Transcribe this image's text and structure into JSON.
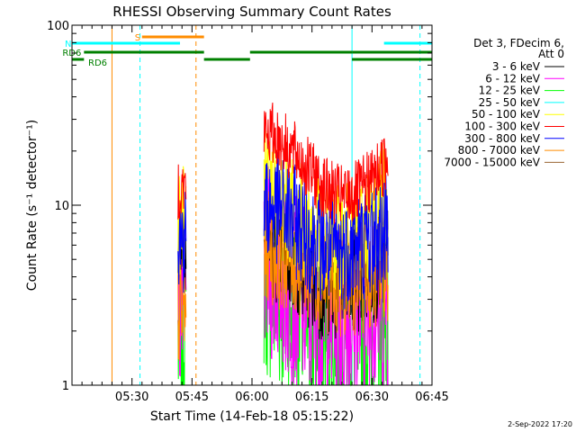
{
  "chart_data": {
    "type": "line",
    "title": "RHESSI Observing Summary Count Rates",
    "xlabel": "Start Time (14-Feb-18 05:15:22)",
    "ylabel": "Count Rate (s⁻¹ detector⁻¹)",
    "yscale": "log",
    "ylim": [
      1,
      100
    ],
    "xlim_minutes_after_0515": [
      0,
      90
    ],
    "x_ticks": [
      {
        "label": "05:30",
        "minute": 15
      },
      {
        "label": "05:45",
        "minute": 30
      },
      {
        "label": "06:00",
        "minute": 45
      },
      {
        "label": "06:15",
        "minute": 60
      },
      {
        "label": "06:30",
        "minute": 75
      },
      {
        "label": "06:45",
        "minute": 90
      }
    ],
    "y_ticks": [
      {
        "label": "1",
        "value": 1
      },
      {
        "label": "10",
        "value": 10
      },
      {
        "label": "100",
        "value": 100
      }
    ],
    "legend_position": "right",
    "legend_header": [
      "Det 3, FDecim 6,",
      "Att 0"
    ],
    "series": [
      {
        "name": "3 - 6 keV",
        "color": "#000000",
        "segments": [
          [
            [
              26.5,
              7.0
            ],
            [
              28.5,
              7.0
            ]
          ],
          [
            [
              48,
              6.0
            ],
            [
              51,
              6.0
            ],
            [
              56,
              5.0
            ],
            [
              60,
              4.0
            ],
            [
              64,
              3.5
            ],
            [
              68,
              3.5
            ],
            [
              72,
              4.0
            ],
            [
              75,
              4.5
            ],
            [
              79,
              5.0
            ]
          ]
        ]
      },
      {
        "name": "6 - 12 keV",
        "color": "#ff00ff",
        "segments": [
          [
            [
              26.5,
              3.0
            ],
            [
              28.5,
              3.0
            ]
          ],
          [
            [
              48,
              5.0
            ],
            [
              52,
              4.0
            ],
            [
              56,
              3.2
            ],
            [
              60,
              2.6
            ],
            [
              64,
              2.4
            ],
            [
              68,
              2.4
            ],
            [
              72,
              2.5
            ],
            [
              75,
              2.8
            ],
            [
              79,
              3.0
            ]
          ]
        ]
      },
      {
        "name": "12 - 25 keV",
        "color": "#00ff00",
        "segments": [
          [
            [
              26.5,
              1.8
            ],
            [
              28.5,
              1.8
            ]
          ],
          [
            [
              48,
              4.0
            ],
            [
              52,
              3.0
            ],
            [
              56,
              2.5
            ],
            [
              60,
              2.0
            ],
            [
              64,
              1.8
            ],
            [
              68,
              1.8
            ],
            [
              72,
              1.9
            ],
            [
              75,
              2.0
            ],
            [
              79,
              2.1
            ]
          ]
        ]
      },
      {
        "name": "25 - 50 keV",
        "color": "#00ffff",
        "segments": []
      },
      {
        "name": "50 - 100 keV",
        "color": "#ffff00",
        "segments": [
          [
            [
              26.5,
              8.5
            ],
            [
              28.5,
              8.5
            ]
          ],
          [
            [
              48,
              13
            ],
            [
              52,
              11
            ],
            [
              56,
              9
            ],
            [
              60,
              7.5
            ],
            [
              64,
              6.5
            ],
            [
              68,
              6.5
            ],
            [
              72,
              7.2
            ],
            [
              75,
              8.5
            ],
            [
              79,
              12
            ]
          ]
        ]
      },
      {
        "name": "100 - 300 keV",
        "color": "#ff0000",
        "segments": [
          [
            [
              26.5,
              12.5
            ],
            [
              28.5,
              12.5
            ]
          ],
          [
            [
              48,
              25
            ],
            [
              50,
              25
            ],
            [
              53,
              22
            ],
            [
              56,
              19
            ],
            [
              60,
              15
            ],
            [
              64,
              12
            ],
            [
              68,
              11
            ],
            [
              72,
              12
            ],
            [
              75,
              14
            ],
            [
              79,
              18
            ]
          ]
        ]
      },
      {
        "name": "300 - 800 keV",
        "color": "#0000ff",
        "segments": [
          [
            [
              26.5,
              6.5
            ],
            [
              28.5,
              6.5
            ]
          ],
          [
            [
              48,
              10
            ],
            [
              52,
              9.5
            ],
            [
              56,
              8
            ],
            [
              60,
              6.5
            ],
            [
              64,
              5.5
            ],
            [
              68,
              5.5
            ],
            [
              72,
              6.0
            ],
            [
              75,
              6.5
            ],
            [
              79,
              7.2
            ]
          ]
        ]
      },
      {
        "name": "800 - 7000 keV",
        "color": "#ff8c00",
        "segments": [
          [
            [
              26.5,
              2.5
            ],
            [
              28.5,
              2.5
            ]
          ],
          [
            [
              48,
              6.0
            ],
            [
              52,
              5.5
            ],
            [
              56,
              5.0
            ],
            [
              60,
              4.5
            ],
            [
              64,
              4.0
            ],
            [
              68,
              3.8
            ],
            [
              72,
              4.0
            ],
            [
              75,
              4.2
            ],
            [
              79,
              4.5
            ]
          ]
        ]
      },
      {
        "name": "7000 - 15000 keV",
        "color": "#996633",
        "segments": []
      }
    ],
    "flag_bars": [
      {
        "label": "S",
        "color": "#ff8c00",
        "row": 1,
        "start": 17.5,
        "end": 33
      },
      {
        "label": "N",
        "color": "#00ffff",
        "row": 2,
        "start": 0,
        "end": 27
      },
      {
        "label": "",
        "color": "#00ffff",
        "row": 2,
        "start": 78,
        "end": 90
      },
      {
        "label": "RD6",
        "color": "#008000",
        "row": 3,
        "start": 3,
        "end": 33
      },
      {
        "label": "",
        "color": "#008000",
        "row": 3,
        "start": 44.5,
        "end": 70
      },
      {
        "label": "",
        "color": "#008000",
        "row": 3,
        "start": 70,
        "end": 90
      },
      {
        "label": "RD6",
        "color": "#008000",
        "row": 4,
        "start": 0,
        "end": 3
      },
      {
        "label": "",
        "color": "#008000",
        "row": 4,
        "start": 33,
        "end": 44.5
      },
      {
        "label": "",
        "color": "#008000",
        "row": 4,
        "start": 70,
        "end": 90
      }
    ],
    "markers": [
      {
        "minute": 0,
        "color": "#00ffff",
        "style": "solid"
      },
      {
        "minute": 10,
        "color": "#ff8c00",
        "style": "solid"
      },
      {
        "minute": 17,
        "color": "#00ffff",
        "style": "dashed"
      },
      {
        "minute": 31,
        "color": "#ff8c00",
        "style": "dashed"
      },
      {
        "minute": 70,
        "color": "#00ffff",
        "style": "solid"
      },
      {
        "minute": 87,
        "color": "#00ffff",
        "style": "dashed"
      }
    ]
  },
  "footer": {
    "date": "2-Sep-2022 17:20"
  }
}
